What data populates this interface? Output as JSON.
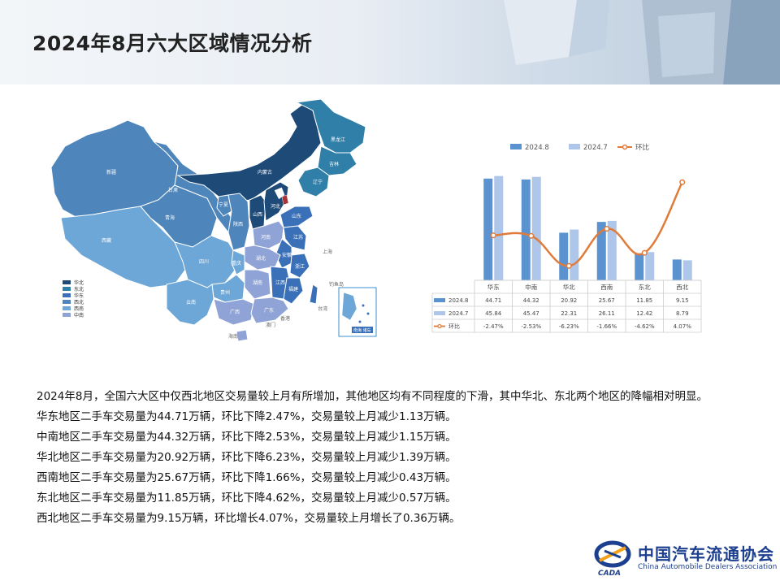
{
  "title": "2024年8月六大区域情况分析",
  "map": {
    "labels": {
      "heilongjiang": "黑龙江",
      "jilin": "吉林",
      "liaoning": "辽宁",
      "neimenggu": "内蒙古",
      "xinjiang": "新疆",
      "xizang": "西藏",
      "qinghai": "青海",
      "gansu": "甘肃",
      "ningxia": "宁夏",
      "shaanxi": "陕西",
      "shanxi": "山西",
      "hebei": "河北",
      "shandong": "山东",
      "henan": "河南",
      "jiangsu": "江苏",
      "shanghai": "上海",
      "anhui": "安徽",
      "zhejiang": "浙江",
      "hubei": "湖北",
      "sichuan": "四川",
      "chongqing": "重庆",
      "hunan": "湖南",
      "jiangxi": "江西",
      "fujian": "福建",
      "guizhou": "贵州",
      "yunnan": "云南",
      "guangxi": "广西",
      "guangdong": "广东",
      "hainan": "海南",
      "taiwan": "台湾",
      "xianggang": "香港",
      "aomen": "澳门",
      "diaoyudao": "钓鱼岛",
      "nanhai": "南海 诸岛"
    },
    "legend": [
      {
        "label": "华北",
        "color": "#1e4a78"
      },
      {
        "label": "东北",
        "color": "#2f7fa8"
      },
      {
        "label": "华东",
        "color": "#3a70b8"
      },
      {
        "label": "西北",
        "color": "#4e86bb"
      },
      {
        "label": "西南",
        "color": "#6da7d7"
      },
      {
        "label": "中南",
        "color": "#8fa3d6"
      }
    ]
  },
  "chart_data": {
    "type": "bar",
    "categories": [
      "华东",
      "中南",
      "华北",
      "西南",
      "东北",
      "西北"
    ],
    "series": [
      {
        "name": "2024.8",
        "type": "bar",
        "values": [
          44.71,
          44.32,
          20.92,
          25.67,
          11.85,
          9.15
        ],
        "color": "#5b92d0"
      },
      {
        "name": "2024.7",
        "type": "bar",
        "values": [
          45.84,
          45.47,
          22.31,
          26.11,
          12.42,
          8.79
        ],
        "color": "#adc6e9"
      },
      {
        "name": "环比",
        "type": "line",
        "values": [
          -2.47,
          -2.53,
          -6.23,
          -1.66,
          -4.62,
          4.07
        ],
        "color": "#e07b39"
      }
    ],
    "table_rows": [
      {
        "label": "2024.8",
        "cells": [
          "44.71",
          "44.32",
          "20.92",
          "25.67",
          "11.85",
          "9.15"
        ]
      },
      {
        "label": "2024.7",
        "cells": [
          "45.84",
          "45.47",
          "22.31",
          "26.11",
          "12.42",
          "8.79"
        ]
      },
      {
        "label": "环比",
        "cells": [
          "-2.47%",
          "-2.53%",
          "-6.23%",
          "-1.66%",
          "-4.62%",
          "4.07%"
        ]
      }
    ],
    "ylim": [
      0,
      50
    ],
    "y2lim": [
      -8,
      6
    ],
    "legend_position": "top",
    "grid": false
  },
  "text": {
    "lines": [
      "2024年8月，全国六大区中仅西北地区交易量较上月有所增加，其他地区均有不同程度的下滑，其中华北、东北两个地区的降幅相对明显。",
      "华东地区二手车交易量为44.71万辆，环比下降2.47%，交易量较上月减少1.13万辆。",
      "中南地区二手车交易量为44.32万辆，环比下降2.53%，交易量较上月减少1.15万辆。",
      "华北地区二手车交易量为20.92万辆，环比下降6.23%，交易量较上月减少1.39万辆。",
      "西南地区二手车交易量为25.67万辆，环比下降1.66%，交易量较上月减少0.43万辆。",
      "东北地区二手车交易量为11.85万辆，环比下降4.62%，交易量较上月减少0.57万辆。",
      "西北地区二手车交易量为9.15万辆，环比增长4.07%，交易量较上月增长了0.36万辆。"
    ]
  },
  "logo": {
    "name_cn": "中国汽车流通协会",
    "name_en": "China Automobile Dealers Association",
    "mark_text": "CADA"
  }
}
